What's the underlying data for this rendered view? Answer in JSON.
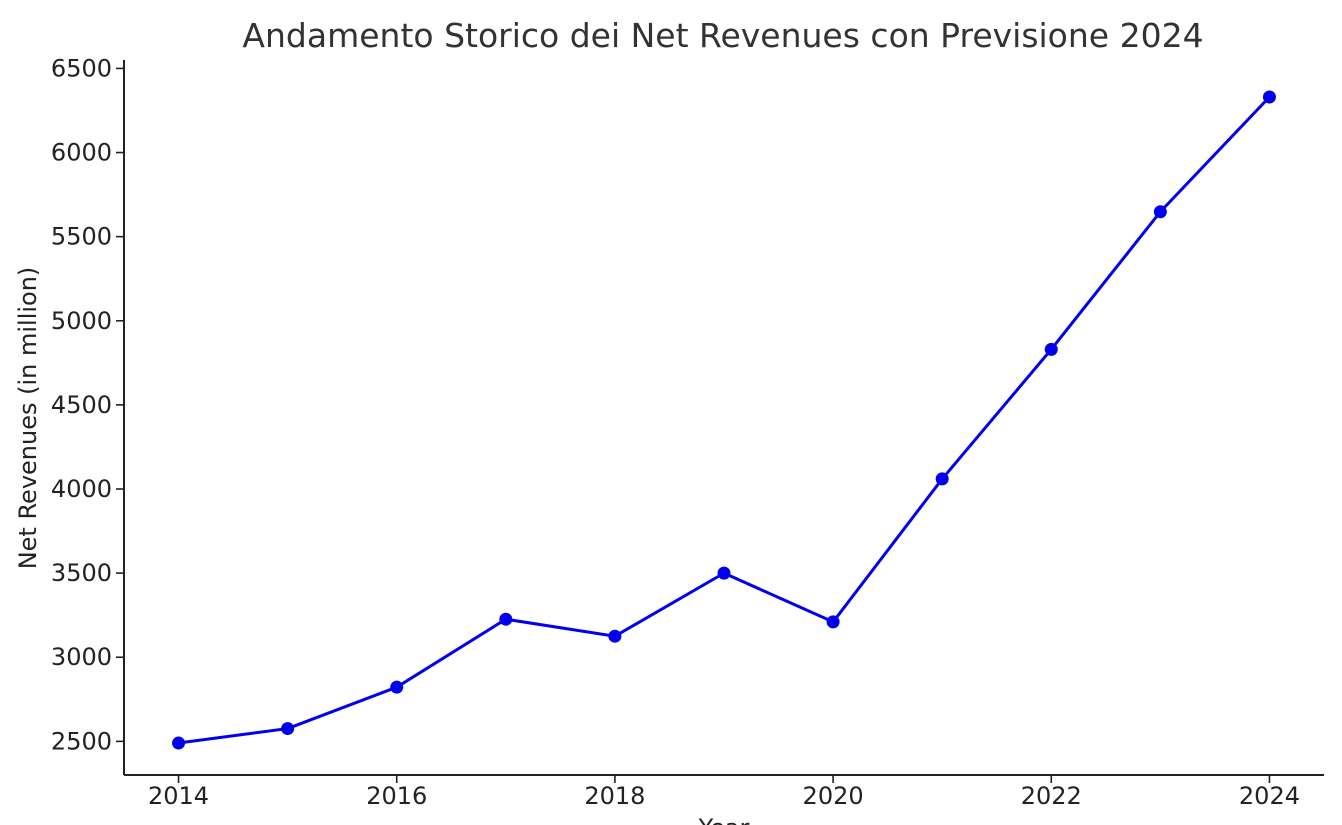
{
  "chart_data": {
    "type": "line",
    "title": "Andamento Storico dei Net Revenues con Previsione 2024",
    "xlabel": "Year",
    "ylabel": "Net Revenues (in million)",
    "x": [
      2014,
      2015,
      2016,
      2017,
      2018,
      2019,
      2020,
      2021,
      2022,
      2023,
      2024
    ],
    "series": [
      {
        "values": [
          2490,
          2576,
          2822,
          3226,
          3125,
          3500,
          3210,
          4060,
          4830,
          5648,
          6330
        ],
        "color": "#0000ee"
      }
    ],
    "xticks": [
      "2014",
      "2016",
      "2018",
      "2020",
      "2022",
      "2024"
    ],
    "yticks": [
      "2500",
      "3000",
      "3500",
      "4000",
      "4500",
      "5000",
      "5500",
      "6000",
      "6500"
    ],
    "xlim": [
      2013.5,
      2024.5
    ],
    "ylim": [
      2300,
      6550
    ],
    "grid": false,
    "legend": "none",
    "markers": "circle"
  }
}
